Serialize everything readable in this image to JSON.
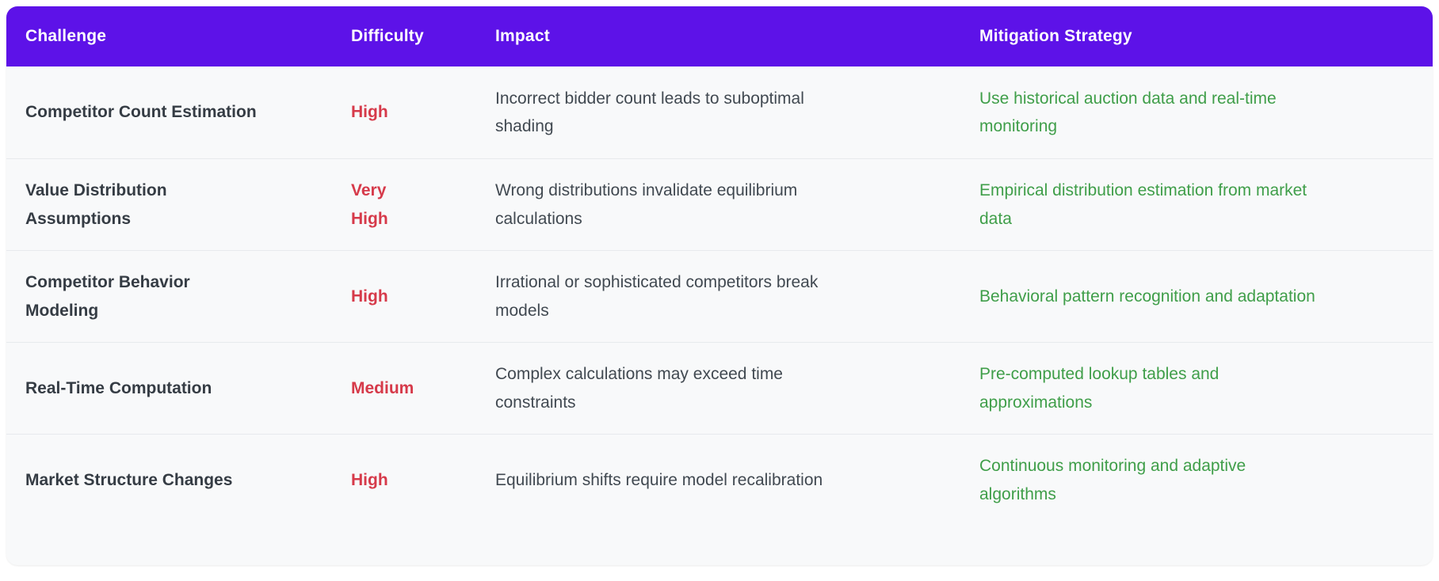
{
  "theme": {
    "page_bg": "#ffffff",
    "header_bg": "#5d12e8",
    "header_text": "#ffffff",
    "row_bg": "#f8f9fa",
    "divider": "#e7eaed",
    "challenge_color": "#353c44",
    "impact_color": "#414951",
    "difficulty_color": "#d63a4a",
    "mitigation_color": "#3f9e49"
  },
  "table": {
    "headers": [
      "Challenge",
      "Difficulty",
      "Impact",
      "Mitigation Strategy"
    ],
    "rows": [
      {
        "challenge": "Competitor Count Estimation",
        "difficulty": "High",
        "impact": "Incorrect bidder count leads to suboptimal\nshading",
        "mitigation": "Use historical auction data and real-time\nmonitoring"
      },
      {
        "challenge": "Value Distribution\nAssumptions",
        "difficulty": "Very\nHigh",
        "impact": "Wrong distributions invalidate equilibrium\ncalculations",
        "mitigation": "Empirical distribution estimation from market\ndata"
      },
      {
        "challenge": "Competitor Behavior\nModeling",
        "difficulty": "High",
        "impact": "Irrational or sophisticated competitors break\nmodels",
        "mitigation": "Behavioral pattern recognition and adaptation"
      },
      {
        "challenge": "Real-Time Computation",
        "difficulty": "Medium",
        "impact": "Complex calculations may exceed time\nconstraints",
        "mitigation": "Pre-computed lookup tables and\napproximations"
      },
      {
        "challenge": "Market Structure Changes",
        "difficulty": "High",
        "impact": "Equilibrium shifts require model recalibration",
        "mitigation": "Continuous monitoring and adaptive\nalgorithms"
      }
    ]
  }
}
